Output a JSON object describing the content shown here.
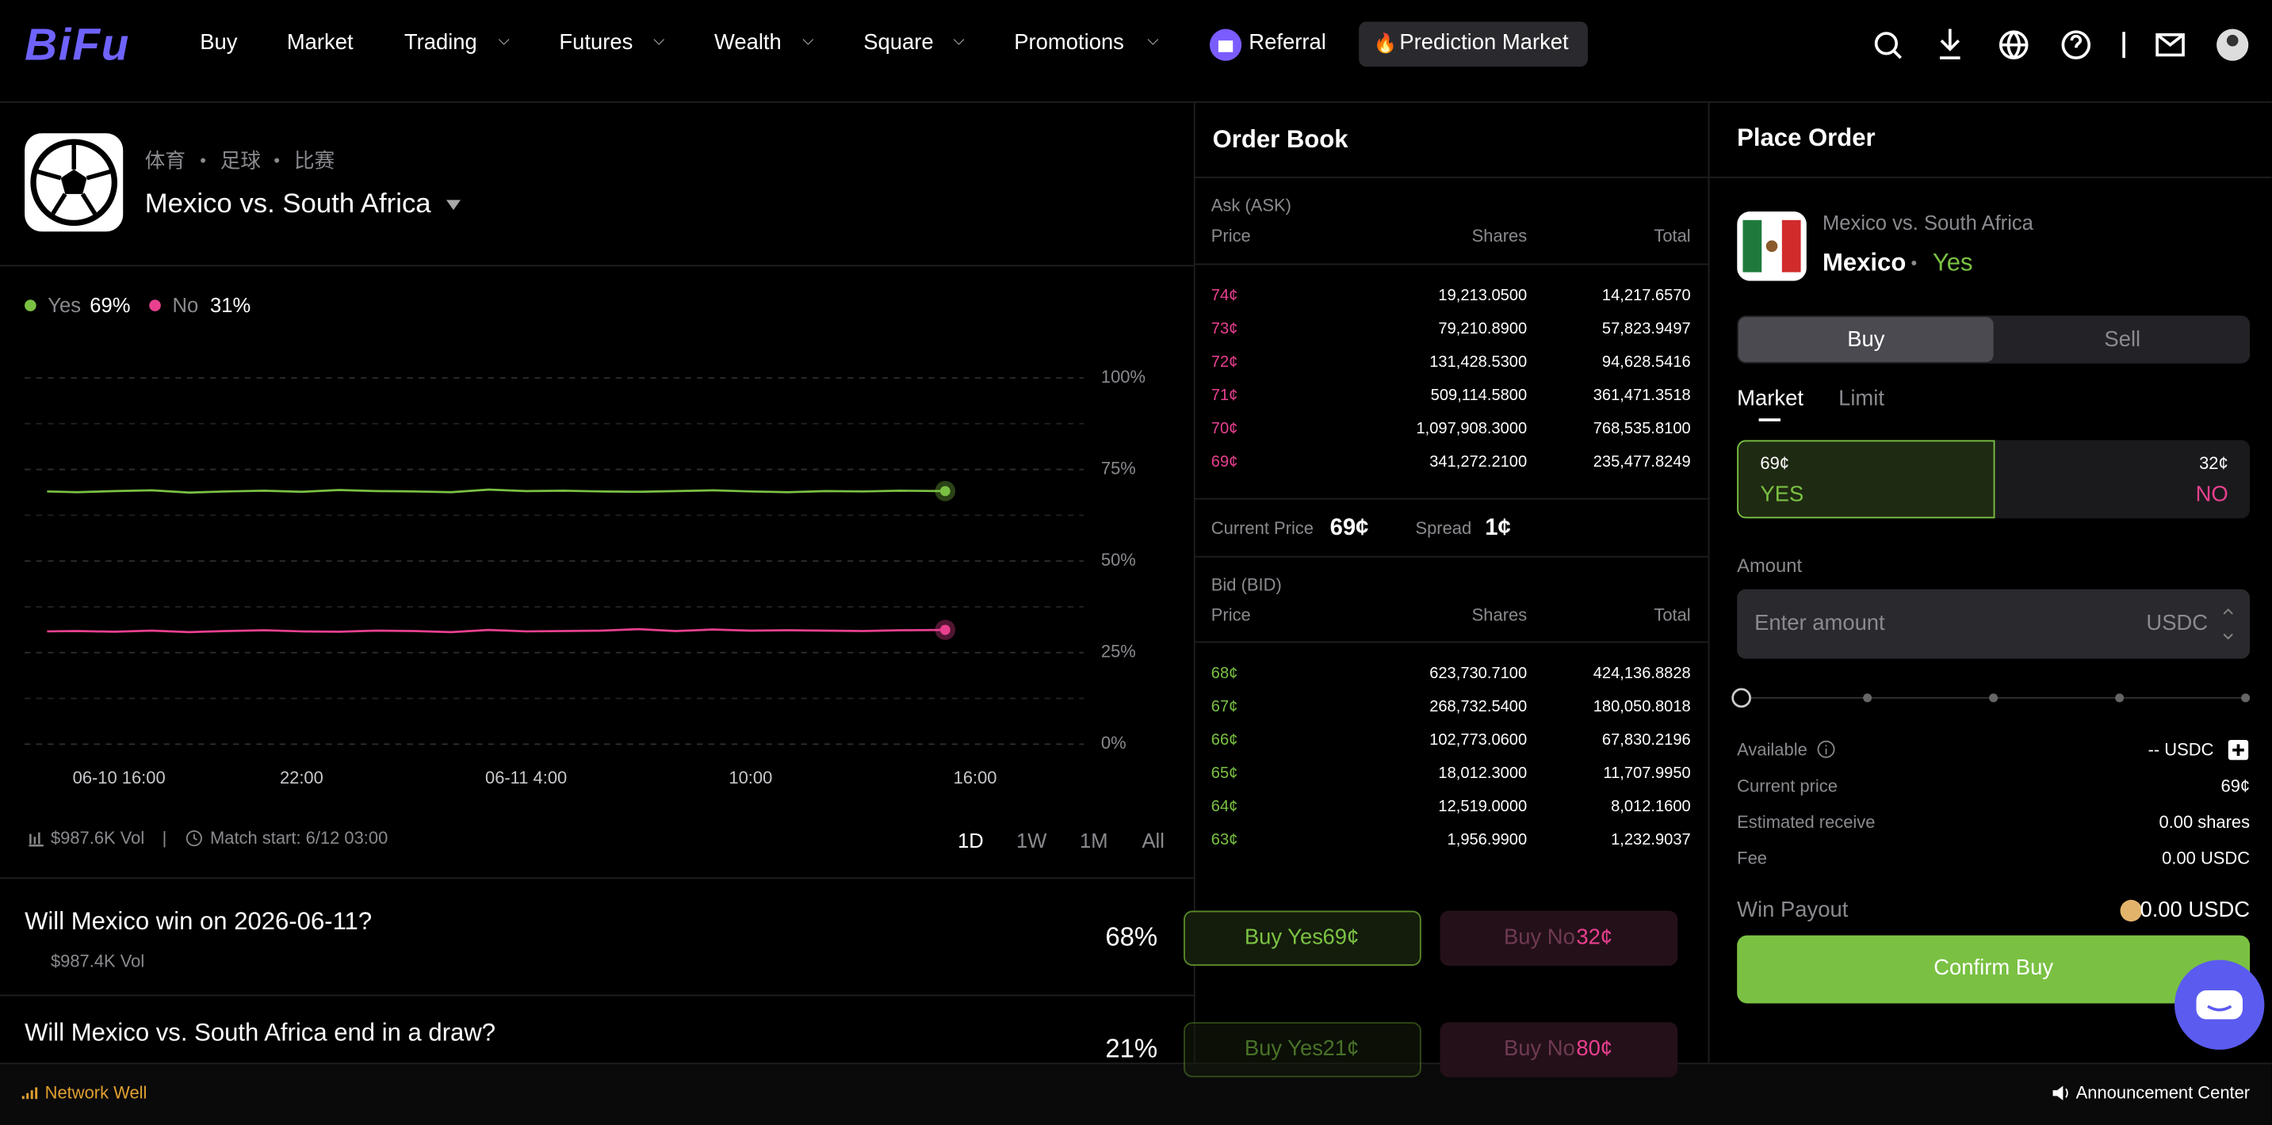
{
  "nav": {
    "logo": "BiFu",
    "items": [
      "Buy",
      "Market",
      "Trading",
      "Futures",
      "Wealth",
      "Square",
      "Promotions"
    ],
    "referral": "Referral",
    "prediction": "Prediction Market"
  },
  "market": {
    "breadcrumb": [
      "体育",
      "足球",
      "比赛"
    ],
    "title": "Mexico vs. South Africa",
    "volume": "$987.6K Vol",
    "match_start": "Match start: 6/12 03:00",
    "ranges": [
      "1D",
      "1W",
      "1M",
      "All"
    ]
  },
  "chart_data": {
    "type": "line",
    "x": [
      -0.8,
      0,
      1,
      2,
      3,
      4,
      5,
      6,
      7,
      8,
      9,
      10,
      11,
      12,
      13,
      14,
      15,
      16,
      17,
      18,
      19,
      20,
      21,
      22,
      23.2
    ],
    "series": [
      {
        "name": "Yes",
        "color": "#7ac143",
        "current_label": "69%",
        "values": [
          69.0,
          68.8,
          69.1,
          69.3,
          68.7,
          69.0,
          69.2,
          68.9,
          69.4,
          69.1,
          69.0,
          68.8,
          69.5,
          69.1,
          69.2,
          69.0,
          68.9,
          69.1,
          69.3,
          69.0,
          68.8,
          69.1,
          69.0,
          69.2,
          69.1
        ]
      },
      {
        "name": "No",
        "color": "#e8408f",
        "current_label": "31%",
        "values": [
          30.8,
          30.9,
          30.7,
          31.0,
          30.6,
          30.9,
          31.1,
          30.8,
          30.7,
          31.0,
          30.9,
          30.6,
          31.2,
          30.8,
          30.9,
          31.0,
          31.4,
          30.9,
          31.3,
          31.0,
          31.1,
          31.0,
          30.9,
          31.1,
          31.2
        ]
      }
    ],
    "xlim": [
      -1.4,
      26.9
    ],
    "xticks": [
      {
        "value": 0,
        "label": "06-10 16:00"
      },
      {
        "value": 6,
        "label": "22:00"
      },
      {
        "value": 12,
        "label": "06-11 4:00"
      },
      {
        "value": 18,
        "label": "10:00"
      },
      {
        "value": 24,
        "label": "16:00"
      }
    ],
    "ylim": [
      0,
      100
    ],
    "yticks": [
      {
        "value": 0,
        "label": "0%"
      },
      {
        "value": 25,
        "label": "25%"
      },
      {
        "value": 50,
        "label": "50%"
      },
      {
        "value": 75,
        "label": "75%"
      },
      {
        "value": 100,
        "label": "100%"
      }
    ],
    "yminorticks": [
      12.5,
      37.5,
      62.5,
      87.5
    ],
    "grid": true
  },
  "questions": [
    {
      "question": "Will Mexico win on 2026-06-11?",
      "volume": "$987.4K Vol",
      "probability": "68%",
      "buy_yes": "Buy Yes",
      "yes_price": "69¢",
      "buy_no": "Buy No",
      "no_price": "32¢"
    },
    {
      "question": "Will Mexico vs. South Africa end in a draw?",
      "probability": "21%",
      "buy_yes": "Buy Yes",
      "yes_price": "21¢",
      "buy_no": "Buy No",
      "no_price": "80¢"
    }
  ],
  "order_book": {
    "title": "Order Book",
    "ask_label": "Ask (ASK)",
    "bid_label": "Bid (BID)",
    "headers": [
      "Price",
      "Shares",
      "Total"
    ],
    "asks": [
      {
        "price": "74¢",
        "shares": "19,213.0500",
        "total": "14,217.6570"
      },
      {
        "price": "73¢",
        "shares": "79,210.8900",
        "total": "57,823.9497"
      },
      {
        "price": "72¢",
        "shares": "131,428.5300",
        "total": "94,628.5416"
      },
      {
        "price": "71¢",
        "shares": "509,114.5800",
        "total": "361,471.3518"
      },
      {
        "price": "70¢",
        "shares": "1,097,908.3000",
        "total": "768,535.8100"
      },
      {
        "price": "69¢",
        "shares": "341,272.2100",
        "total": "235,477.8249"
      }
    ],
    "current_price_label": "Current Price",
    "current_price": "69¢",
    "spread_label": "Spread",
    "spread": "1¢",
    "bids": [
      {
        "price": "68¢",
        "shares": "623,730.7100",
        "total": "424,136.8828"
      },
      {
        "price": "67¢",
        "shares": "268,732.5400",
        "total": "180,050.8018"
      },
      {
        "price": "66¢",
        "shares": "102,773.0600",
        "total": "67,830.2196"
      },
      {
        "price": "65¢",
        "shares": "18,012.3000",
        "total": "11,707.9950"
      },
      {
        "price": "64¢",
        "shares": "12,519.0000",
        "total": "8,012.1600"
      },
      {
        "price": "63¢",
        "shares": "1,956.9900",
        "total": "1,232.9037"
      }
    ]
  },
  "place_order": {
    "title": "Place Order",
    "market": "Mexico vs. South Africa",
    "outcome": "Mexico",
    "side": "Yes",
    "tabs": [
      "Buy",
      "Sell"
    ],
    "order_types": [
      "Market",
      "Limit"
    ],
    "yes_price": "69¢",
    "yes_label": "YES",
    "no_price": "32¢",
    "no_label": "NO",
    "amount_label": "Amount",
    "amount_placeholder": "Enter amount",
    "currency": "USDC",
    "details": [
      {
        "label": "Available",
        "value": "-- USDC"
      },
      {
        "label": "Current price",
        "value": "69¢"
      },
      {
        "label": "Estimated receive",
        "value": "0.00 shares"
      },
      {
        "label": "Fee",
        "value": "0.00 USDC"
      }
    ],
    "win_payout_label": "Win Payout",
    "win_payout": "0.00 USDC",
    "confirm": "Confirm Buy"
  },
  "footer": {
    "status": "Network Well",
    "announcements": "Announcement Center"
  }
}
